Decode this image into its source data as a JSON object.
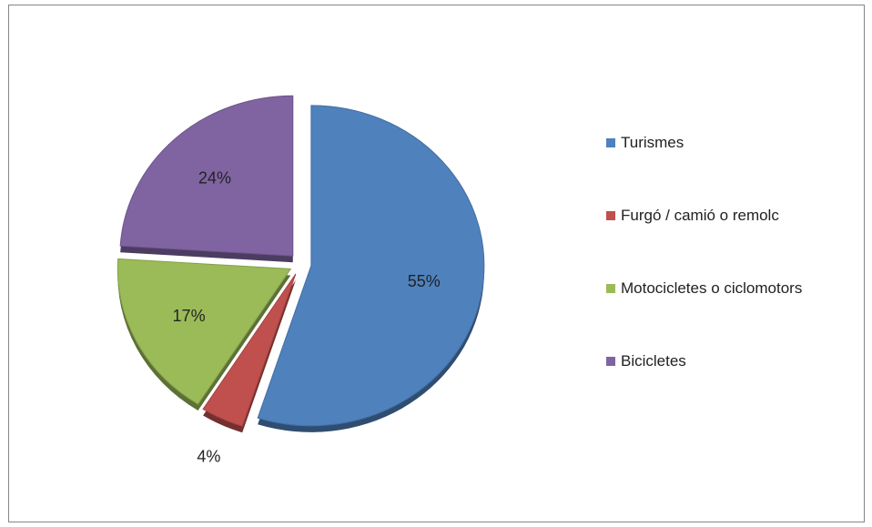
{
  "chart_data": {
    "type": "pie",
    "categories": [
      "Turismes",
      "Furgó / camió o remolc",
      "Motocicletes o ciclomotors",
      "Bicicletes"
    ],
    "values": [
      55,
      4,
      17,
      24
    ],
    "value_labels": [
      "55%",
      "4%",
      "17%",
      "24%"
    ],
    "colors": [
      "#4f81bd",
      "#c0504d",
      "#9bbb59",
      "#8064a2"
    ],
    "exploded": true,
    "legend": "right"
  }
}
